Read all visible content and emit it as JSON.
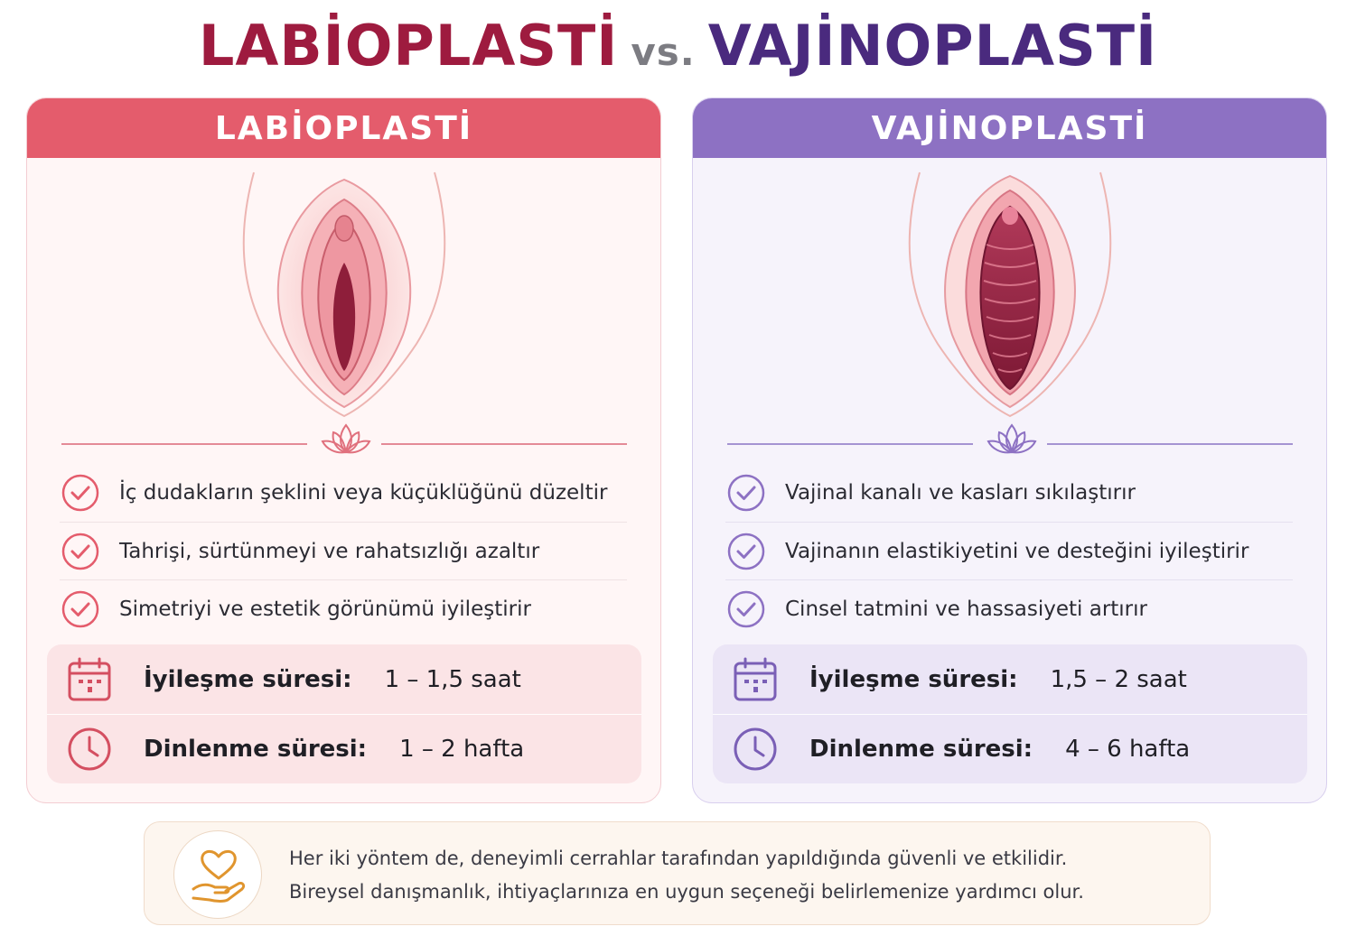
{
  "title": {
    "left": "LABİOPLASTİ",
    "vs": "vs.",
    "right": "VAJİNOPLASTİ"
  },
  "colors": {
    "labio_accent": "#e45c6c",
    "labio_title": "#9e1b3f",
    "vajino_accent": "#8d71c3",
    "vajino_title": "#4a2a7e",
    "note_icon": "#e0952e"
  },
  "labioplasti": {
    "header": "LABİOPLASTİ",
    "features": [
      "İç dudakların şeklini veya küçüklüğünü düzeltir",
      "Tahrişi, sürtünmeyi ve rahatsızlığı azaltır",
      "Simetriyi ve estetik görünümü iyileştirir"
    ],
    "stats": {
      "surgery_label": "İyileşme süresi:",
      "surgery_value": "1 – 1,5 saat",
      "rest_label": "Dinlenme süresi:",
      "rest_value": "1 – 2 hafta"
    },
    "icons": [
      "labia-illustration",
      "lotus-icon",
      "check-icon",
      "calendar-icon",
      "clock-icon"
    ]
  },
  "vajinoplasti": {
    "header": "VAJİNOPLASTİ",
    "features": [
      "Vajinal kanalı ve kasları sıkılaştırır",
      "Vajinanın elastikiyetini ve desteğini iyileştirir",
      "Cinsel tatmini ve hassasiyeti artırır"
    ],
    "stats": {
      "surgery_label": "İyileşme süresi:",
      "surgery_value": "1,5 – 2 saat",
      "rest_label": "Dinlenme süresi:",
      "rest_value": "4 – 6 hafta"
    },
    "icons": [
      "vaginal-canal-illustration",
      "lotus-icon",
      "check-icon",
      "calendar-icon",
      "clock-icon"
    ]
  },
  "note": {
    "line1": "Her iki yöntem de, deneyimli cerrahlar tarafından yapıldığında güvenli ve etkilidir.",
    "line2": "Bireysel danışmanlık, ihtiyaçlarınıza en uygun seçeneği belirlemenize yardımcı olur.",
    "icon": "heart-hand-icon"
  }
}
